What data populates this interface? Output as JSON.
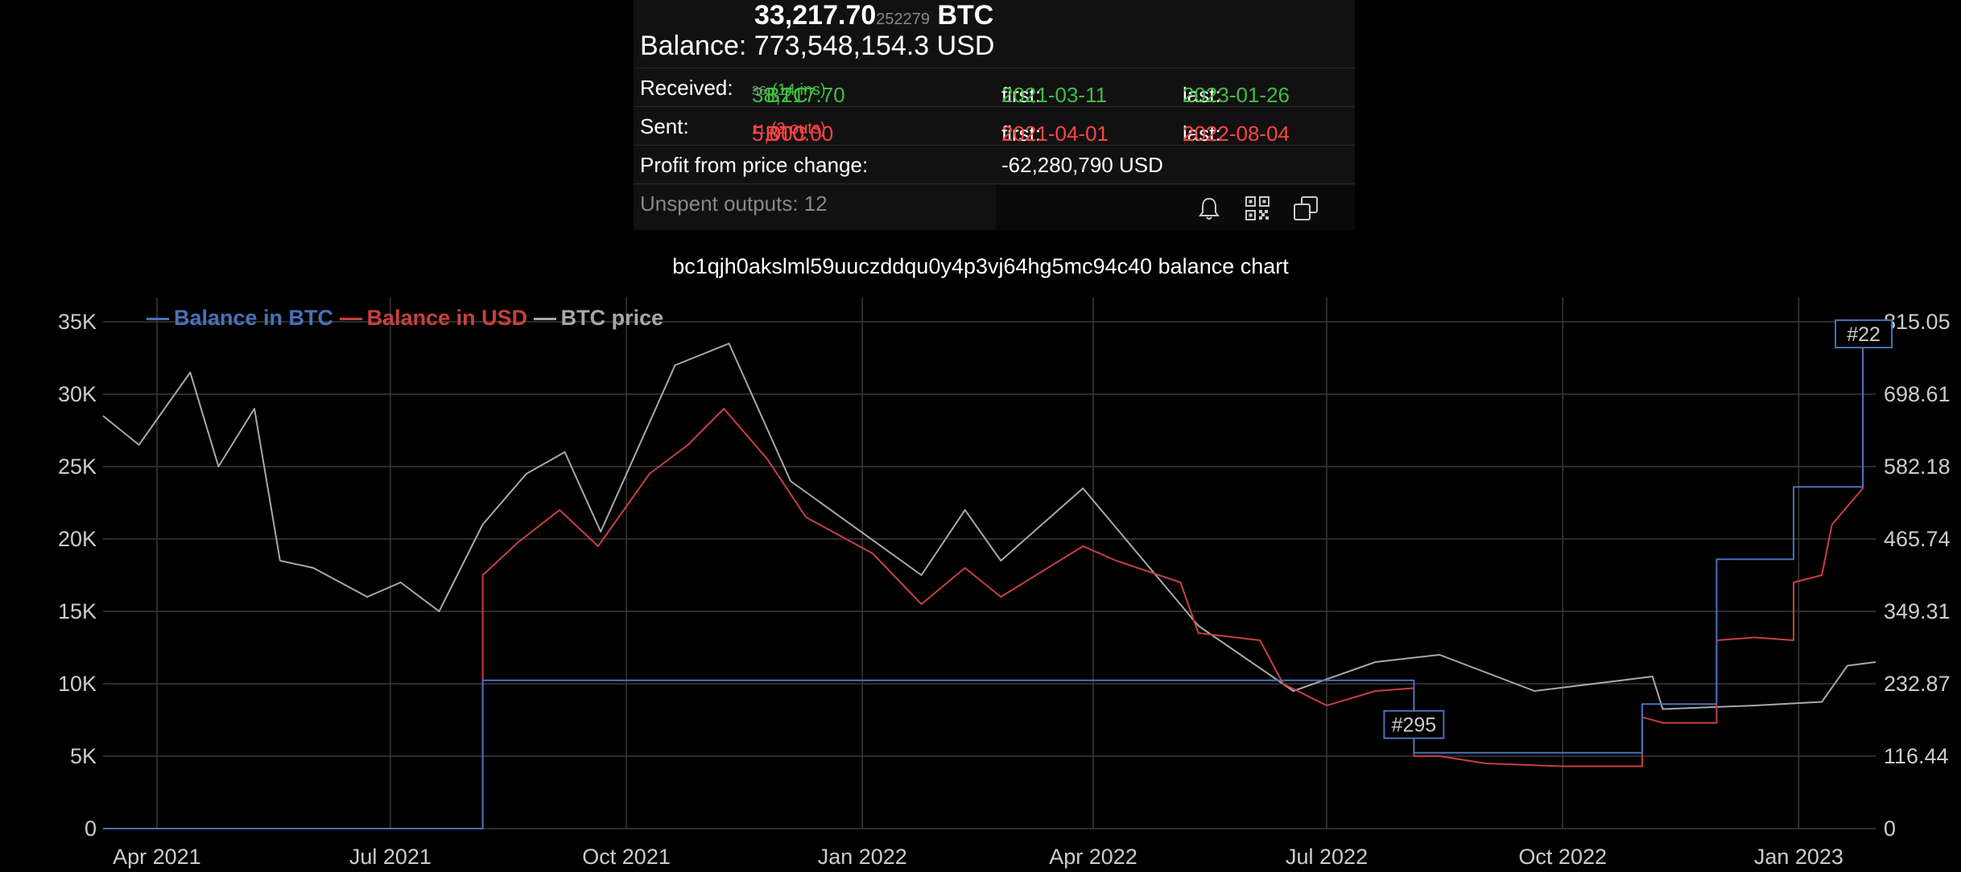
{
  "wallet": {
    "balance_btc_main": "33,217.70",
    "balance_btc_small": "252279",
    "balance_btc_unit": " BTC",
    "balance_usd_label": "Balance:",
    "balance_usd_value": "773,548,154.3 USD",
    "received_label": "Received:",
    "received_main": "38,217.70",
    "received_small": "36",
    "received_unit": " BTC",
    "received_count": "(14 ins)",
    "received_first_label": "first:",
    "received_first": "2021-03-11",
    "received_last_label": "last:",
    "received_last": "2023-01-26",
    "sent_label": "Sent:",
    "sent_main": "5,000.00",
    "sent_small": "11",
    "sent_unit": " BTC",
    "sent_count": "(2 outs)",
    "sent_first_label": "first:",
    "sent_first": "2021-04-01",
    "sent_last_label": "last:",
    "sent_last": "2022-08-04",
    "profit_label": "Profit from price change:",
    "profit_value": "-62,280,790 USD",
    "unspent": "Unspent outputs: 12",
    "icons": [
      "bell-icon",
      "qr-code-icon",
      "copy-icon"
    ]
  },
  "colors": {
    "btc": "#4a72b8",
    "usd": "#c84040",
    "price": "#a8a8a8",
    "green": "#3fbf3f",
    "red": "#ff4444"
  },
  "chart_data": {
    "type": "line",
    "title": "bc1qjh0akslml59uuczddqu0y4p3vj64hg5mc94c40 balance chart",
    "legend": [
      "Balance in BTC",
      "Balance in USD",
      "BTC price"
    ],
    "legend_position": "top-left",
    "grid": true,
    "x_tick_labels": [
      "Apr 2021",
      "Jul 2021",
      "Oct 2021",
      "Jan 2022",
      "Apr 2022",
      "Jul 2022",
      "Oct 2022",
      "Jan 2023"
    ],
    "x_tick_dates": [
      "2021-04-01",
      "2021-07-01",
      "2021-10-01",
      "2022-01-01",
      "2022-04-01",
      "2022-07-01",
      "2022-10-01",
      "2023-01-01"
    ],
    "xlim": [
      "2021-03-11",
      "2023-01-31"
    ],
    "y_left_ticks": [
      "0",
      "5K",
      "10K",
      "15K",
      "20K",
      "25K",
      "30K",
      "35K"
    ],
    "y_left_lim": [
      0,
      35000
    ],
    "y_right_ticks": [
      "0",
      "116.44",
      "232.87",
      "349.31",
      "465.74",
      "582.18",
      "698.61",
      "815.05"
    ],
    "annotations": [
      {
        "label": "#295",
        "date": "2022-08-04"
      },
      {
        "label": "#22",
        "date": "2023-01-26"
      }
    ],
    "series": [
      {
        "name": "Balance in BTC",
        "step": true,
        "points": [
          [
            "2021-03-11",
            0
          ],
          [
            "2021-08-06",
            0
          ],
          [
            "2021-08-06",
            10240
          ],
          [
            "2022-08-04",
            10240
          ],
          [
            "2022-08-04",
            5240
          ],
          [
            "2022-11-01",
            5240
          ],
          [
            "2022-11-01",
            8600
          ],
          [
            "2022-11-30",
            8600
          ],
          [
            "2022-11-30",
            18600
          ],
          [
            "2022-12-30",
            18600
          ],
          [
            "2022-12-30",
            23600
          ],
          [
            "2023-01-26",
            23600
          ],
          [
            "2023-01-26",
            33217.7
          ]
        ]
      },
      {
        "name": "Balance in USD",
        "points": [
          [
            "2021-03-11",
            0
          ],
          [
            "2021-08-06",
            0
          ],
          [
            "2021-08-06",
            17500
          ],
          [
            "2021-08-20",
            19800
          ],
          [
            "2021-09-05",
            22000
          ],
          [
            "2021-09-20",
            19500
          ],
          [
            "2021-10-10",
            24500
          ],
          [
            "2021-10-25",
            26500
          ],
          [
            "2021-11-08",
            29000
          ],
          [
            "2021-11-25",
            25500
          ],
          [
            "2021-12-10",
            21500
          ],
          [
            "2022-01-05",
            19000
          ],
          [
            "2022-01-24",
            15500
          ],
          [
            "2022-02-10",
            18000
          ],
          [
            "2022-02-24",
            16000
          ],
          [
            "2022-03-28",
            19500
          ],
          [
            "2022-04-10",
            18500
          ],
          [
            "2022-05-05",
            17000
          ],
          [
            "2022-05-12",
            13500
          ],
          [
            "2022-06-05",
            13000
          ],
          [
            "2022-06-14",
            10000
          ],
          [
            "2022-07-01",
            8500
          ],
          [
            "2022-07-20",
            9500
          ],
          [
            "2022-08-04",
            9700
          ],
          [
            "2022-08-04",
            5000
          ],
          [
            "2022-08-14",
            5000
          ],
          [
            "2022-09-01",
            4500
          ],
          [
            "2022-10-01",
            4300
          ],
          [
            "2022-11-01",
            4300
          ],
          [
            "2022-11-01",
            7700
          ],
          [
            "2022-11-09",
            7300
          ],
          [
            "2022-11-30",
            7300
          ],
          [
            "2022-11-30",
            13000
          ],
          [
            "2022-12-15",
            13200
          ],
          [
            "2022-12-30",
            13000
          ],
          [
            "2022-12-30",
            17000
          ],
          [
            "2023-01-10",
            17500
          ],
          [
            "2023-01-14",
            21000
          ],
          [
            "2023-01-26",
            23500
          ],
          [
            "2023-01-26",
            33000
          ]
        ]
      },
      {
        "name": "BTC price",
        "points": [
          [
            "2021-03-11",
            57000
          ],
          [
            "2021-03-25",
            53000
          ],
          [
            "2021-04-14",
            63000
          ],
          [
            "2021-04-25",
            50000
          ],
          [
            "2021-05-09",
            58000
          ],
          [
            "2021-05-19",
            37000
          ],
          [
            "2021-06-01",
            36000
          ],
          [
            "2021-06-22",
            32000
          ],
          [
            "2021-07-05",
            34000
          ],
          [
            "2021-07-20",
            30000
          ],
          [
            "2021-08-06",
            42000
          ],
          [
            "2021-08-23",
            49000
          ],
          [
            "2021-09-07",
            52000
          ],
          [
            "2021-09-21",
            41000
          ],
          [
            "2021-10-20",
            64000
          ],
          [
            "2021-11-10",
            67000
          ],
          [
            "2021-12-04",
            48000
          ],
          [
            "2022-01-24",
            35000
          ],
          [
            "2022-02-10",
            44000
          ],
          [
            "2022-02-24",
            37000
          ],
          [
            "2022-03-28",
            47000
          ],
          [
            "2022-05-12",
            28000
          ],
          [
            "2022-06-18",
            19000
          ],
          [
            "2022-07-20",
            23000
          ],
          [
            "2022-08-14",
            24000
          ],
          [
            "2022-09-20",
            19000
          ],
          [
            "2022-11-05",
            21000
          ],
          [
            "2022-11-09",
            16500
          ],
          [
            "2022-12-15",
            17000
          ],
          [
            "2023-01-10",
            17500
          ],
          [
            "2023-01-20",
            22500
          ],
          [
            "2023-01-31",
            23000
          ]
        ]
      }
    ]
  }
}
